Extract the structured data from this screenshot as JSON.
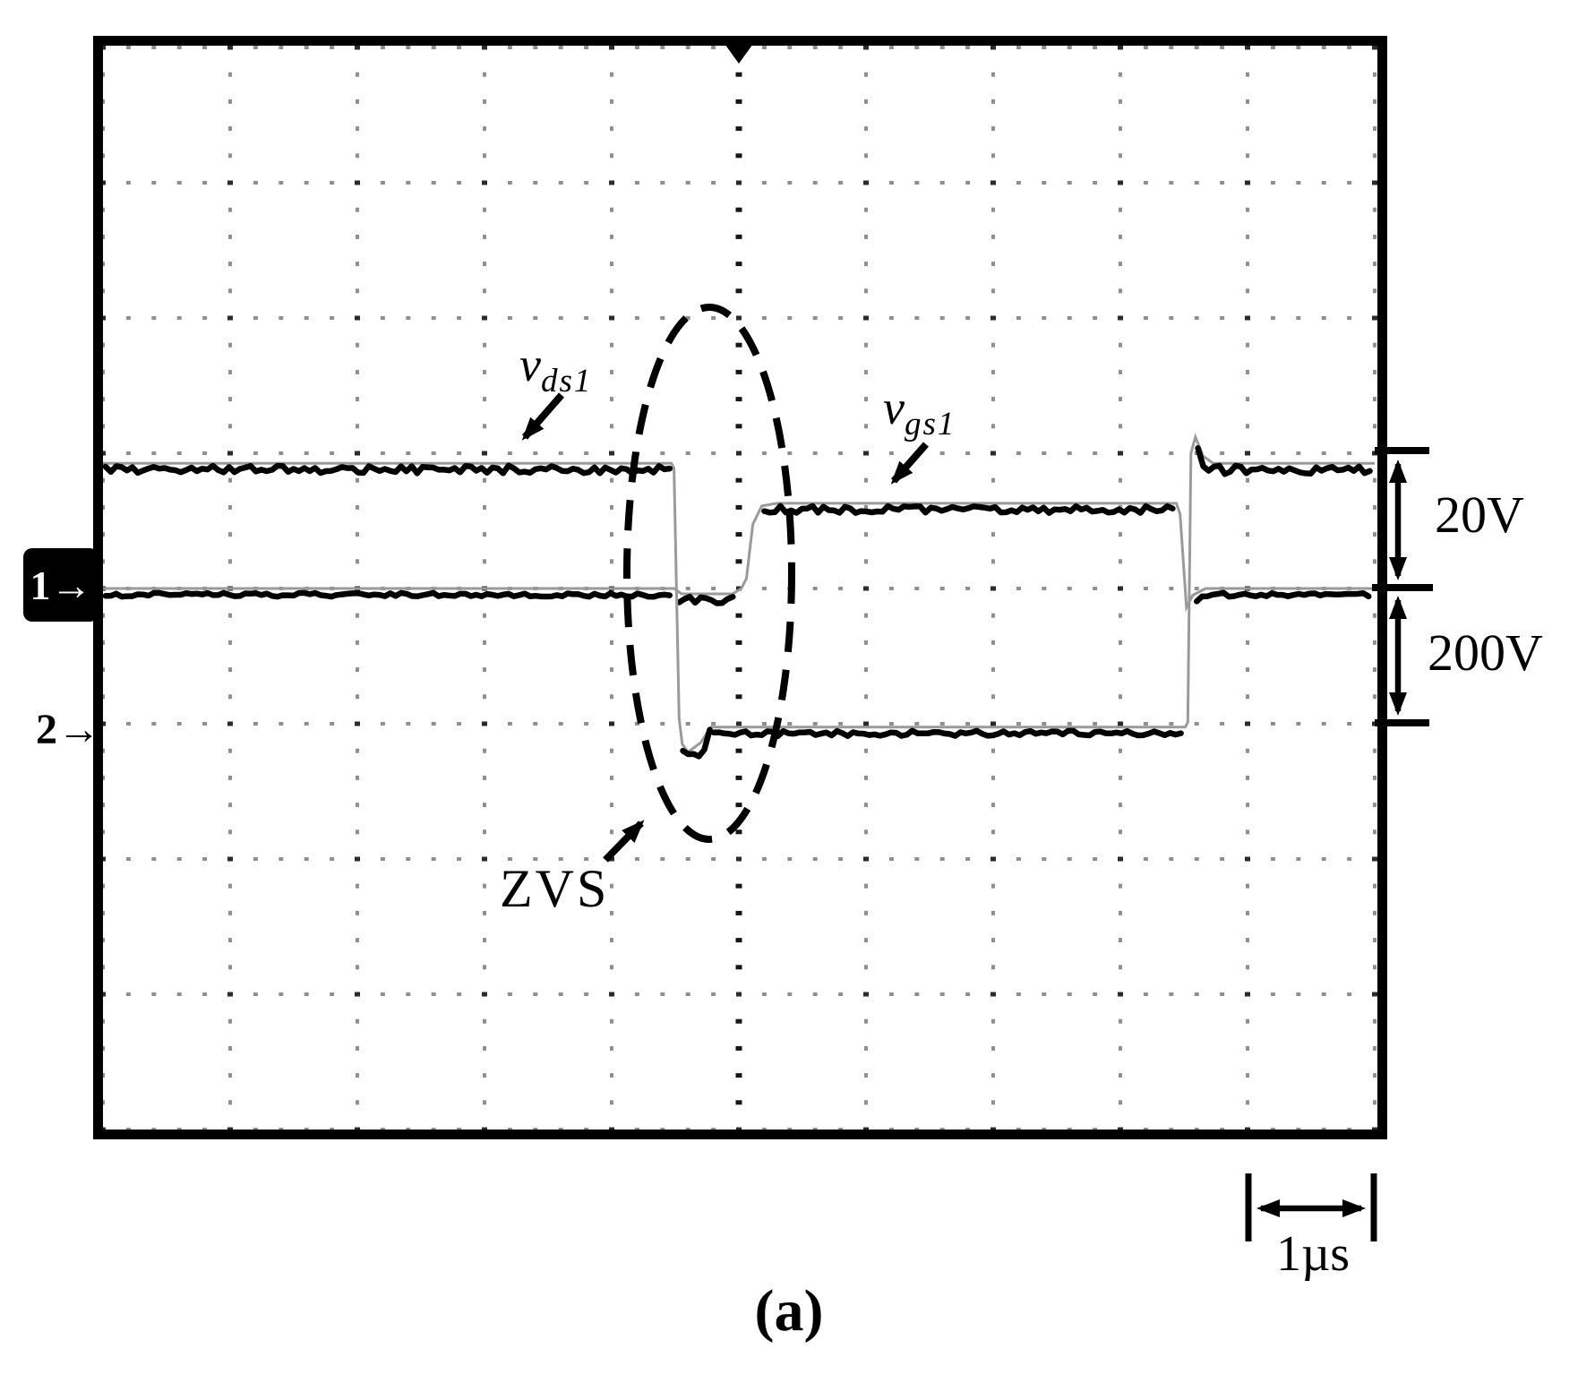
{
  "figure": {
    "caption": "(a)"
  },
  "scope": {
    "channel_markers": [
      {
        "label": "1→"
      },
      {
        "label": "2→"
      }
    ],
    "labels": {
      "vds": {
        "main": "v",
        "sub": "ds1"
      },
      "vgs": {
        "main": "v",
        "sub": "gs1"
      },
      "zvs": "ZVS",
      "scale_ch1": "20V",
      "scale_ch2": "200V",
      "timebase": "1µs"
    }
  },
  "chart_data": {
    "type": "line",
    "title": "ZVS turn-on waveforms of switch S1 (oscilloscope capture)",
    "x_unit": "µs",
    "x_range": [
      0,
      10
    ],
    "time_per_div_us": 1,
    "grid": {
      "x_divisions": 10,
      "y_divisions": 8,
      "style": "dotted"
    },
    "annotations": [
      "ZVS dashed ellipse highlights v_ds1 reaching zero before v_gs1 rises",
      "20V vertical arrow spans one division at channel-1 zero",
      "200V vertical arrow spans one division below channel-1 zero",
      "1µs horizontal arrow spans one division under bottom-right corner"
    ],
    "series": [
      {
        "name": "v_gs1",
        "channel": 1,
        "volts_per_div": 20,
        "zero_at_row": 4,
        "points": [
          [
            0,
            0
          ],
          [
            4.49,
            0
          ],
          [
            4.55,
            -0.8
          ],
          [
            4.95,
            -0.8
          ],
          [
            5.02,
            0
          ],
          [
            5.06,
            1.5
          ],
          [
            5.11,
            9.5
          ],
          [
            5.18,
            12.2
          ],
          [
            5.3,
            12.6
          ],
          [
            8.44,
            12.6
          ],
          [
            8.47,
            11
          ],
          [
            8.52,
            -2.8
          ],
          [
            8.57,
            -1
          ],
          [
            8.67,
            0
          ],
          [
            10,
            0
          ]
        ],
        "flat_noise_segments": [
          [
            0.02,
            4.49,
            2.2
          ],
          [
            4.53,
            4.97,
            4.5
          ],
          [
            5.2,
            8.44,
            4.0
          ],
          [
            8.6,
            9.98,
            2.2
          ]
        ]
      },
      {
        "name": "v_ds1",
        "channel": 2,
        "volts_per_div": 200,
        "zero_at_row": 5,
        "points": [
          [
            0,
            385
          ],
          [
            4.47,
            385
          ],
          [
            4.49,
            378
          ],
          [
            4.53,
            8
          ],
          [
            4.555,
            -30
          ],
          [
            4.6,
            -42
          ],
          [
            4.7,
            -28
          ],
          [
            4.78,
            -5
          ],
          [
            8.51,
            -5
          ],
          [
            8.53,
            2
          ],
          [
            8.555,
            400
          ],
          [
            8.59,
            424
          ],
          [
            8.65,
            396
          ],
          [
            8.73,
            385
          ],
          [
            10,
            385
          ]
        ],
        "flat_noise_segments": [
          [
            0.02,
            4.46,
            4.5
          ],
          [
            4.56,
            4.8,
            8
          ],
          [
            4.8,
            8.5,
            3
          ],
          [
            8.61,
            9.98,
            5
          ]
        ]
      }
    ]
  }
}
